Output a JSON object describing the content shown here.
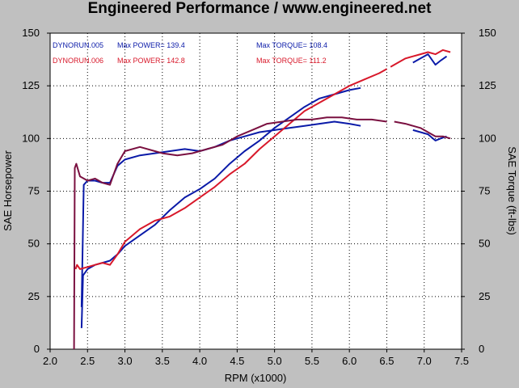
{
  "title": "Engineered Performance / www.engineered.net",
  "colors": {
    "background": "#c0c0c0",
    "plot_bg": "#ffffff",
    "run005": "#0a1aa8",
    "run006": "#d8182a",
    "run006_torque": "#7a1040"
  },
  "chart_data": {
    "type": "line",
    "xlabel": "RPM (x1000)",
    "ylabel": "SAE Horsepower",
    "y2label": "SAE Torque (ft-lbs)",
    "xlim": [
      2.0,
      7.5
    ],
    "ylim": [
      0,
      150
    ],
    "y2lim": [
      0,
      150
    ],
    "xticks": [
      "2.0",
      "2.5",
      "3.0",
      "3.5",
      "4.0",
      "4.5",
      "5.0",
      "5.5",
      "6.0",
      "6.5",
      "7.0",
      "7.5"
    ],
    "yticks": [
      "0",
      "25",
      "50",
      "75",
      "100",
      "125",
      "150"
    ],
    "grid": true,
    "legend": [
      {
        "run": "DYNORUN.005",
        "power": "Max POWER= 139.4",
        "torque": "Max TORQUE= 108.4",
        "color": "#0a1aa8"
      },
      {
        "run": "DYNORUN.006",
        "power": "Max POWER= 142.8",
        "torque": "Max TORQUE= 111.2",
        "color": "#d8182a"
      }
    ],
    "series": [
      {
        "name": "DYNORUN.005",
        "kind": "power",
        "color": "#0a1aa8",
        "x": [
          2.42,
          2.44,
          2.5,
          2.6,
          2.7,
          2.8,
          2.9,
          3.0,
          3.2,
          3.4,
          3.6,
          3.8,
          4.0,
          4.2,
          4.4,
          4.6,
          4.8,
          5.0,
          5.2,
          5.4,
          5.6,
          5.8,
          6.0,
          6.15
        ],
        "values": [
          10,
          35,
          38,
          40,
          41,
          42,
          45,
          49,
          54,
          59,
          66,
          72,
          76,
          81,
          88,
          94,
          99,
          105,
          110,
          115,
          119,
          121,
          123,
          124
        ]
      },
      {
        "name": "DYNORUN.005",
        "kind": "power",
        "color": "#0a1aa8",
        "x": [
          6.85,
          6.95,
          7.05,
          7.15,
          7.22,
          7.3
        ],
        "values": [
          136,
          138,
          140,
          135,
          137,
          139
        ]
      },
      {
        "name": "DYNORUN.005",
        "kind": "torque",
        "color": "#0a1aa8",
        "x": [
          2.42,
          2.45,
          2.5,
          2.6,
          2.7,
          2.8,
          2.9,
          3.0,
          3.2,
          3.4,
          3.6,
          3.8,
          4.0,
          4.2,
          4.4,
          4.6,
          4.8,
          5.0,
          5.2,
          5.4,
          5.6,
          5.8,
          6.0,
          6.15
        ],
        "values": [
          20,
          78,
          80,
          80,
          79,
          79,
          87,
          90,
          92,
          93,
          94,
          95,
          94,
          96,
          99,
          101,
          103,
          104,
          105,
          106,
          107,
          108,
          107,
          106
        ]
      },
      {
        "name": "DYNORUN.005",
        "kind": "torque",
        "color": "#0a1aa8",
        "x": [
          6.85,
          6.95,
          7.05,
          7.15,
          7.22,
          7.3
        ],
        "values": [
          104,
          103,
          102,
          99,
          100,
          101
        ]
      },
      {
        "name": "DYNORUN.006",
        "kind": "power",
        "color": "#d8182a",
        "x": [
          2.34,
          2.36,
          2.4,
          2.5,
          2.6,
          2.7,
          2.8,
          2.9,
          3.0,
          3.2,
          3.4,
          3.6,
          3.8,
          4.0,
          4.2,
          4.4,
          4.6,
          4.8,
          5.0,
          5.2,
          5.4,
          5.6,
          5.8,
          6.0,
          6.2,
          6.4,
          6.5
        ],
        "values": [
          38,
          40,
          38,
          39,
          40,
          41,
          40,
          45,
          51,
          57,
          61,
          63,
          67,
          72,
          77,
          83,
          88,
          95,
          101,
          107,
          113,
          117,
          121,
          125,
          128,
          131,
          133
        ]
      },
      {
        "name": "DYNORUN.006",
        "kind": "power",
        "color": "#d8182a",
        "x": [
          6.55,
          6.65,
          6.75,
          6.85,
          6.95,
          7.05,
          7.15,
          7.25,
          7.35
        ],
        "values": [
          134,
          136,
          138,
          139,
          140,
          141,
          140,
          142,
          141
        ]
      },
      {
        "name": "DYNORUN.006",
        "kind": "torque",
        "color": "#7a1040",
        "x": [
          2.32,
          2.33,
          2.35,
          2.4,
          2.5,
          2.6,
          2.7,
          2.8,
          2.9,
          3.0,
          3.2,
          3.4,
          3.5,
          3.7,
          3.9,
          4.1,
          4.3,
          4.5,
          4.7,
          4.9,
          5.1,
          5.3,
          5.5,
          5.7,
          5.9,
          6.1,
          6.3,
          6.5
        ],
        "values": [
          0,
          86,
          88,
          82,
          80,
          81,
          79,
          78,
          88,
          94,
          96,
          94,
          93,
          92,
          93,
          95,
          97,
          101,
          104,
          107,
          108,
          109,
          109,
          110,
          110,
          109,
          109,
          108
        ]
      },
      {
        "name": "DYNORUN.006",
        "kind": "torque",
        "color": "#7a1040",
        "x": [
          6.6,
          6.75,
          6.85,
          6.95,
          7.05,
          7.15,
          7.25,
          7.35
        ],
        "values": [
          108,
          107,
          106,
          105,
          103,
          101,
          101,
          100
        ]
      }
    ]
  }
}
